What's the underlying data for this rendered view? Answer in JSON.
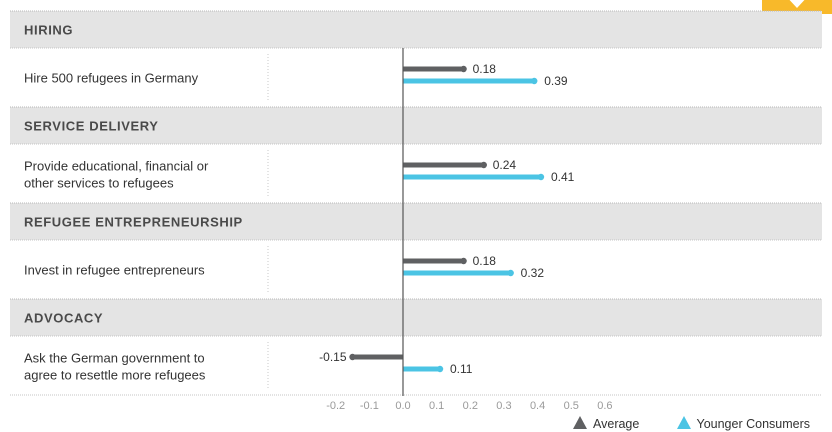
{
  "chart_data": {
    "type": "bar",
    "orientation": "horizontal",
    "xlim": [
      -0.2,
      0.6
    ],
    "xticks": [
      -0.2,
      -0.1,
      0.0,
      0.1,
      0.2,
      0.3,
      0.4,
      0.5,
      0.6
    ],
    "tick_labels": [
      "-0.2",
      "-0.1",
      "0.0",
      "0.1",
      "0.2",
      "0.3",
      "0.4",
      "0.5",
      "0.6"
    ],
    "colors": {
      "average": "#5f6062",
      "younger": "#4bc4e4",
      "header_bg": "#e4e4e4",
      "axis": "#555555",
      "accent": "#f8b92a"
    },
    "legend": {
      "position": "bottom-right",
      "items": [
        {
          "label": "Average",
          "color": "#5f6062"
        },
        {
          "label": "Younger Consumers",
          "color": "#4bc4e4"
        }
      ]
    },
    "sections": [
      {
        "header": "HIRING",
        "items": [
          {
            "label_lines": [
              "Hire 500 refugees in Germany"
            ],
            "average": 0.18,
            "younger": 0.39,
            "average_label": "0.18",
            "younger_label": "0.39"
          }
        ]
      },
      {
        "header": "SERVICE DELIVERY",
        "items": [
          {
            "label_lines": [
              "Provide educational, financial or",
              "other services to refugees"
            ],
            "average": 0.24,
            "younger": 0.41,
            "average_label": "0.24",
            "younger_label": "0.41"
          }
        ]
      },
      {
        "header": "REFUGEE ENTREPRENEURSHIP",
        "items": [
          {
            "label_lines": [
              "Invest in refugee entrepreneurs"
            ],
            "average": 0.18,
            "younger": 0.32,
            "average_label": "0.18",
            "younger_label": "0.32"
          }
        ]
      },
      {
        "header": "ADVOCACY",
        "items": [
          {
            "label_lines": [
              "Ask the German government to",
              "agree to resettle more refugees"
            ],
            "average": -0.15,
            "younger": 0.11,
            "average_label": "-0.15",
            "younger_label": "0.11"
          }
        ]
      }
    ]
  }
}
